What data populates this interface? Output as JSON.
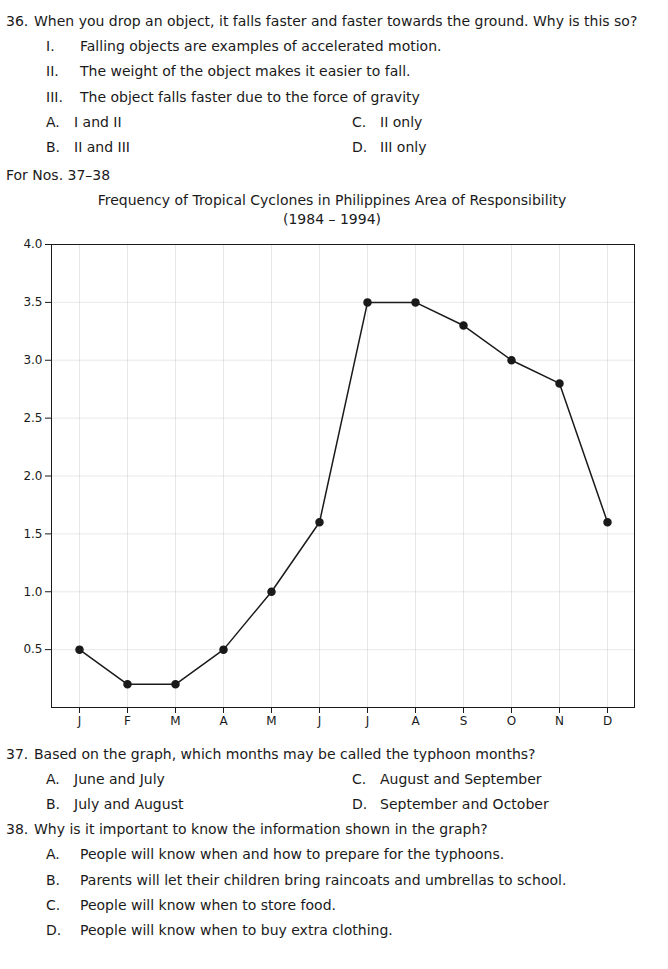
{
  "chart_data": {
    "type": "line",
    "title": "Frequency of Tropical Cyclones in Philippines Area of Responsibility",
    "subtitle": "(1984 – 1994)",
    "categories": [
      "J",
      "F",
      "M",
      "A",
      "M",
      "J",
      "J",
      "A",
      "S",
      "O",
      "N",
      "D"
    ],
    "values": [
      0.5,
      0.2,
      0.2,
      0.5,
      1.0,
      1.6,
      3.5,
      3.5,
      3.3,
      3.0,
      2.8,
      1.6
    ],
    "color": "#1a1a1a",
    "marker": "circle",
    "ylim": [
      0.0,
      4.0
    ],
    "yticks": [
      0.5,
      {
        "value": 1.0,
        "label": "1.0"
      },
      1.5,
      {
        "value": 2.0,
        "label": "2.0"
      },
      2.5,
      {
        "value": 3.0,
        "label": "3.0"
      },
      3.5,
      {
        "value": 4.0,
        "label": "4.0"
      }
    ],
    "grid": true,
    "annotations": {
      "above": [
        [
          "36.",
          "When you drop an object, it falls faster and faster towards the ground. Why is this so?"
        ],
        [
          "I.",
          "Falling objects are examples of accelerated motion."
        ],
        [
          "II.",
          "The weight of the object makes it easier to fall."
        ],
        [
          "III.",
          "The object falls faster due to the force of gravity"
        ],
        [
          "A.",
          "I and II",
          "C.",
          "II only"
        ],
        [
          "B.",
          "II and III",
          "D.",
          "III only"
        ],
        [
          "For Nos. 37–38"
        ]
      ],
      "below": [
        [
          "37.",
          "Based on the graph, which months may be called the typhoon months?"
        ],
        [
          "A.",
          "June and July",
          "C.",
          "August and September"
        ],
        [
          "B.",
          "July and August",
          "D.",
          "September and October"
        ],
        [
          "38.",
          "Why is it important to know the information shown in the graph?"
        ],
        [
          "A.",
          "People will know when and how to prepare for the typhoons."
        ],
        [
          "B.",
          "Parents will let their children bring raincoats and umbrellas to school."
        ],
        [
          "C.",
          "People will know when to store food."
        ],
        [
          "D.",
          "People will know when to buy extra clothing."
        ]
      ]
    }
  }
}
